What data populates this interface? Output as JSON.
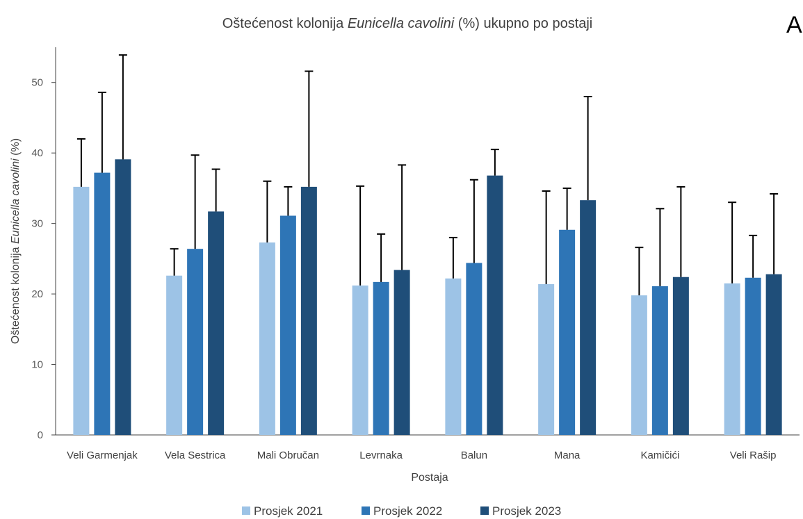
{
  "panel_label": "A",
  "chart_data": {
    "type": "bar",
    "title_parts": [
      "Oštećenost kolonija ",
      "Eunicella cavolini",
      " (%) ukupno po postaji"
    ],
    "xlabel": "Postaja",
    "ylabel_parts": [
      "Oštećenost  kolonija ",
      "Eunicella cavolini",
      " (%)"
    ],
    "ylim": [
      0,
      55
    ],
    "yticks": [
      0,
      10,
      20,
      30,
      40,
      50
    ],
    "grid": false,
    "error_bars": true,
    "legend_position": "bottom",
    "categories": [
      "Veli Garmenjak",
      "Vela Sestrica",
      "Mali Obručan",
      "Levrnaka",
      "Balun",
      "Mana",
      "Kamičići",
      "Veli Rašip"
    ],
    "series": [
      {
        "name": "Prosjek 2021",
        "color": "#9DC3E6",
        "values": [
          35.2,
          22.6,
          27.3,
          21.2,
          22.2,
          21.4,
          19.8,
          21.5
        ],
        "error": [
          6.8,
          3.8,
          8.7,
          14.1,
          5.8,
          13.2,
          6.8,
          11.5
        ]
      },
      {
        "name": "Prosjek 2022",
        "color": "#2E75B6",
        "values": [
          37.2,
          26.4,
          31.1,
          21.7,
          24.4,
          29.1,
          21.1,
          22.3
        ],
        "error": [
          11.4,
          13.3,
          4.1,
          6.8,
          11.8,
          5.9,
          11.0,
          6.0
        ]
      },
      {
        "name": "Prosjek 2023",
        "color": "#1F4E79",
        "values": [
          39.1,
          31.7,
          35.2,
          23.4,
          36.8,
          33.3,
          22.4,
          22.8
        ],
        "error": [
          14.8,
          6.0,
          16.4,
          14.9,
          3.7,
          14.7,
          12.8,
          11.4
        ]
      }
    ]
  }
}
